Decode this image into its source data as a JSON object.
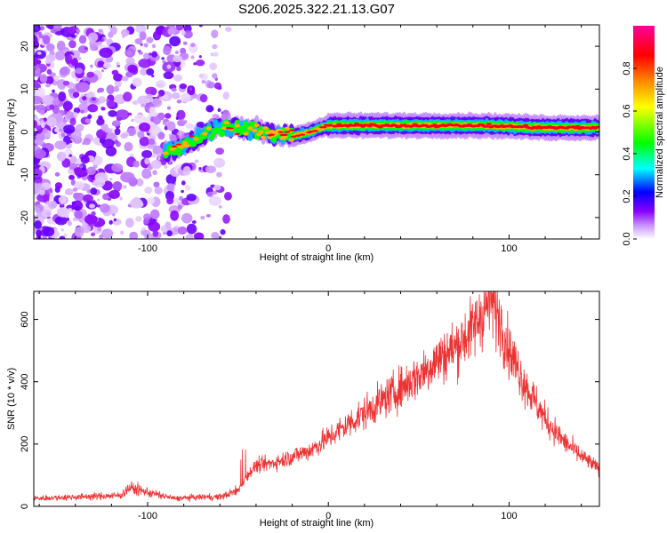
{
  "title": "S206.2025.322.21.13.G07",
  "chart_data": [
    {
      "type": "heatmap",
      "name": "spectrogram",
      "xlabel": "Height of straight line (km)",
      "ylabel": "Frequency (Hz)",
      "xlim": [
        -163,
        150
      ],
      "ylim": [
        -25,
        25
      ],
      "xticks": [
        -100,
        0,
        100
      ],
      "yticks": [
        -20,
        -10,
        0,
        10,
        20
      ],
      "colorbar": {
        "label": "Normalized spectral amplitude",
        "range": [
          0,
          1
        ],
        "ticks": [
          0.0,
          0.2,
          0.4,
          0.6,
          0.8
        ],
        "colormap": [
          "#ffffff",
          "#cc99ff",
          "#8800ff",
          "#0000ff",
          "#00ffff",
          "#00ff00",
          "#ffff00",
          "#ff8800",
          "#ff0000",
          "#ff0099"
        ]
      },
      "ridge": {
        "description": "dominant frequency track",
        "x": [
          -90,
          -80,
          -70,
          -60,
          -50,
          -40,
          -30,
          -20,
          -10,
          0,
          20,
          40,
          60,
          80,
          100,
          120,
          150
        ],
        "y": [
          -5,
          -3,
          -1,
          1,
          1,
          0.5,
          -0.5,
          -1,
          0,
          1.5,
          1.5,
          1.5,
          1.5,
          1.5,
          1.3,
          1,
          1
        ]
      }
    },
    {
      "type": "line",
      "name": "snr",
      "xlabel": "Height of straight line (km)",
      "ylabel": "SNR (10 * v/v)",
      "xlim": [
        -163,
        150
      ],
      "ylim": [
        0,
        690
      ],
      "xticks": [
        -100,
        0,
        100
      ],
      "yticks": [
        0,
        200,
        400,
        600
      ],
      "color": "#ee3333",
      "series": [
        {
          "name": "SNR",
          "x": [
            -163,
            -150,
            -130,
            -115,
            -110,
            -100,
            -85,
            -70,
            -60,
            -50,
            -45,
            -40,
            -30,
            -20,
            -10,
            0,
            10,
            20,
            30,
            40,
            50,
            60,
            70,
            80,
            85,
            90,
            95,
            100,
            110,
            120,
            130,
            140,
            150
          ],
          "y": [
            25,
            28,
            32,
            35,
            60,
            45,
            25,
            30,
            30,
            50,
            100,
            130,
            140,
            160,
            180,
            220,
            260,
            300,
            340,
            380,
            420,
            470,
            510,
            570,
            620,
            660,
            600,
            500,
            380,
            280,
            210,
            160,
            120
          ]
        }
      ]
    }
  ]
}
